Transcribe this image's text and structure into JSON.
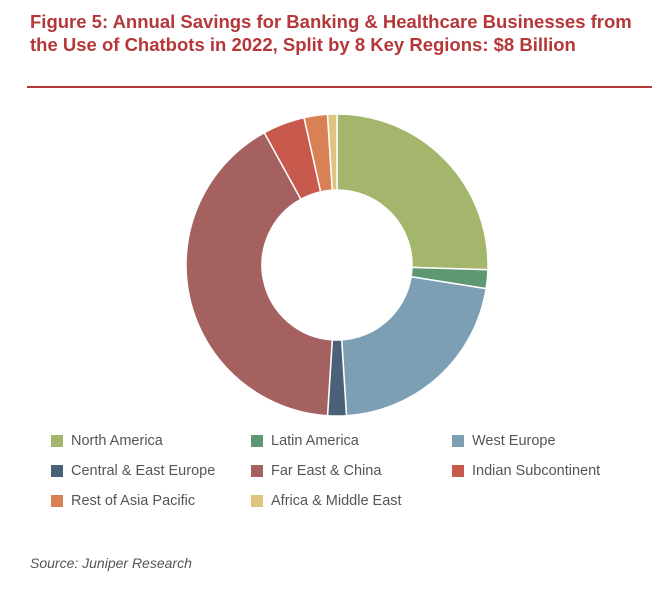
{
  "chart_data": {
    "type": "pie",
    "title": "Figure 5: Annual Savings for Banking & Healthcare Businesses from the Use of Chatbots in 2022, Split by 8 Key Regions: $8 Billion",
    "donut": true,
    "legend_position": "bottom",
    "unit": "share of total (%)",
    "slices": [
      {
        "label": "North America",
        "value": 25.5,
        "color": "#a3b66b"
      },
      {
        "label": "Latin America",
        "value": 2.0,
        "color": "#5e9873"
      },
      {
        "label": "West Europe",
        "value": 21.5,
        "color": "#7d9fb3"
      },
      {
        "label": "Central & East Europe",
        "value": 2.0,
        "color": "#4a6178"
      },
      {
        "label": "Far East & China",
        "value": 41.0,
        "color": "#a56060"
      },
      {
        "label": "Indian Subcontinent",
        "value": 4.5,
        "color": "#c75a4c"
      },
      {
        "label": "Rest of Asia Pacific",
        "value": 2.5,
        "color": "#d98155"
      },
      {
        "label": "Africa & Middle East",
        "value": 1.0,
        "color": "#dfc47f"
      }
    ]
  },
  "source": "Source: Juniper Research"
}
